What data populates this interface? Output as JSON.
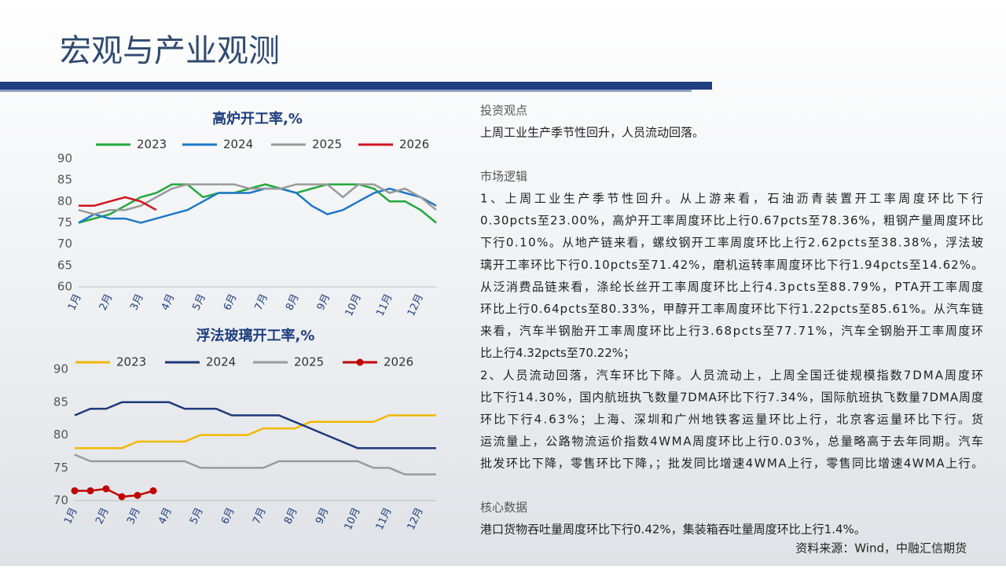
{
  "header": {
    "title": "宏观与产业观测"
  },
  "chart_data": [
    {
      "type": "line",
      "title": "高炉开工率,%",
      "categories": [
        "1月",
        null,
        "2月",
        null,
        "3月",
        null,
        "4月",
        null,
        "5月",
        null,
        "6月",
        null,
        "7月",
        null,
        "8月",
        null,
        "9月",
        null,
        "10月",
        null,
        "11月",
        null,
        "12月",
        null
      ],
      "series": [
        {
          "name": "2023",
          "color": "#22a83c",
          "values": [
            75,
            76,
            77,
            79,
            81,
            82,
            84,
            84,
            81,
            82,
            82,
            83,
            84,
            83,
            82,
            83,
            84,
            84,
            84,
            83,
            80,
            80,
            78,
            75
          ]
        },
        {
          "name": "2024",
          "color": "#1f78c8",
          "values": [
            75,
            77,
            76,
            76,
            75,
            76,
            77,
            78,
            80,
            82,
            82,
            82,
            83,
            83,
            82,
            79,
            77,
            78,
            80,
            82,
            83,
            82,
            81,
            79
          ]
        },
        {
          "name": "2025",
          "color": "#9a9a9a",
          "values": [
            78,
            77,
            78,
            78,
            79,
            81,
            83,
            84,
            84,
            84,
            84,
            83,
            83,
            83,
            84,
            84,
            84,
            81,
            84,
            84,
            82,
            83,
            81,
            78
          ]
        },
        {
          "name": "2026",
          "color": "#d0141e",
          "values": [
            79,
            79,
            80,
            81,
            80,
            78,
            null,
            null,
            null,
            null,
            null,
            null,
            null,
            null,
            null,
            null,
            null,
            null,
            null,
            null,
            null,
            null,
            null,
            null
          ]
        }
      ],
      "ylim": [
        60,
        90
      ],
      "yticks": [
        60,
        65,
        70,
        75,
        80,
        85,
        90
      ]
    },
    {
      "type": "line",
      "title": "浮法玻璃开工率,%",
      "categories": [
        "1月",
        null,
        "2月",
        null,
        "3月",
        null,
        "4月",
        null,
        "5月",
        null,
        "6月",
        null,
        "7月",
        null,
        "8月",
        null,
        "9月",
        null,
        "10月",
        null,
        "11月",
        null,
        "12月",
        null
      ],
      "series": [
        {
          "name": "2023",
          "color": "#f2b800",
          "values": [
            78,
            78,
            78,
            78,
            79,
            79,
            79,
            79,
            80,
            80,
            80,
            80,
            81,
            81,
            81,
            82,
            82,
            82,
            82,
            82,
            83,
            83,
            83,
            83
          ]
        },
        {
          "name": "2024",
          "color": "#1f3a7a",
          "values": [
            83,
            84,
            84,
            85,
            85,
            85,
            85,
            84,
            84,
            84,
            83,
            83,
            83,
            83,
            82,
            81,
            80,
            79,
            78,
            78,
            78,
            78,
            78,
            78
          ]
        },
        {
          "name": "2025",
          "color": "#9a9a9a",
          "values": [
            77,
            76,
            76,
            76,
            76,
            76,
            76,
            76,
            75,
            75,
            75,
            75,
            75,
            76,
            76,
            76,
            76,
            76,
            76,
            75,
            75,
            74,
            74,
            74
          ]
        },
        {
          "name": "2026",
          "color": "#c00000",
          "markers": true,
          "values": [
            71.5,
            71.5,
            71.8,
            70.6,
            70.8,
            71.5,
            null,
            null,
            null,
            null,
            null,
            null,
            null,
            null,
            null,
            null,
            null,
            null,
            null,
            null,
            null,
            null,
            null,
            null
          ]
        }
      ],
      "ylim": [
        70,
        90
      ],
      "yticks": [
        70,
        75,
        80,
        85,
        90
      ]
    }
  ],
  "view": {
    "heading": "投资观点",
    "text": "上周工业生产季节性回升，人员流动回落。"
  },
  "logic": {
    "heading": "市场逻辑",
    "lines": [
      "1、上周工业生产季节性回升。从上游来看，石油沥青装置开工率周度环比下行",
      "0.30pcts至23.00%，高炉开工率周度环比上行0.67pcts至78.36%，粗钢产量周度环比",
      "下行0.10%。从地产链来看，螺纹钢开工率周度环比上行2.62pcts至38.38%，浮法玻",
      "璃开工率环比下行0.10pcts至71.42%，磨机运转率周度环比下行1.94pcts至14.62%。",
      "从泛消费品链来看，涤纶长丝开工率周度环比上行4.3pcts至88.79%，PTA开工率周度",
      "环比上行0.64pcts至80.33%，甲醇开工率周度环比下行1.22pcts至85.61%。从汽车链",
      "来看，汽车半钢胎开工率周度环比上行3.68pcts至77.71%，汽车全钢胎开工率周度环",
      "比上行4.32pcts至70.22%；",
      "2、人员流动回落，汽车环比下降。人员流动上，上周全国迁徙规模指数7DMA周度环",
      "比下行14.30%，国内航班执飞数量7DMA环比下行7.34%，国际航班执飞数量7DMA周度",
      "环比下行4.63%；上海、深圳和广州地铁客运量环比上行，北京客运量环比下行。货",
      "运流量上，公路物流运价指数4WMA周度环比上行0.03%，总量略高于去年同期。汽车",
      "批发环比下降，零售环比下降，；批发同比增速4WMA上行，零售同比增速4WMA上行。"
    ]
  },
  "core": {
    "heading": "核心数据",
    "text": "港口货物吞吐量周度环比下行0.42%，集装箱吞吐量周度环比上行1.4%。"
  },
  "source": "资料来源：Wind，中融汇信期货"
}
